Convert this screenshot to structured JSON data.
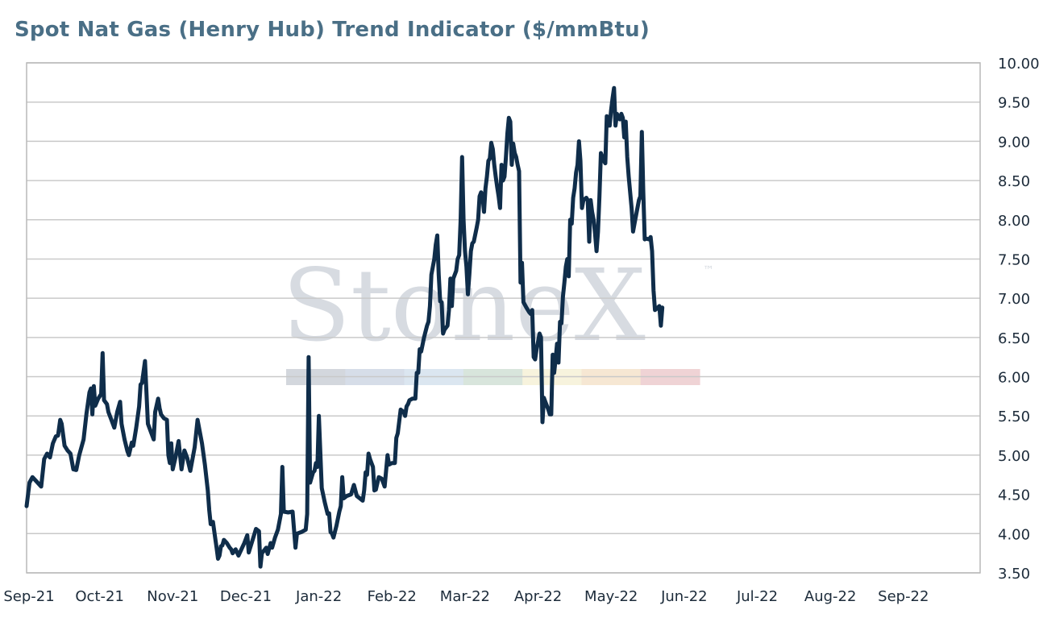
{
  "chart_data": {
    "type": "line",
    "title": "Spot Nat Gas (Henry Hub) Trend Indicator ($/mmBtu)",
    "xlabel": "",
    "ylabel": "",
    "ylim": [
      3.5,
      10.0
    ],
    "yticks": [
      "3.50",
      "4.00",
      "4.50",
      "5.00",
      "5.50",
      "6.00",
      "6.50",
      "7.00",
      "7.50",
      "8.00",
      "8.50",
      "9.00",
      "9.50",
      "10.00"
    ],
    "y_axis_side": "right",
    "grid": true,
    "legend": "none",
    "x_tick_labels": [
      "Sep-21",
      "Oct-21",
      "Nov-21",
      "Dec-21",
      "Jan-22",
      "Feb-22",
      "Mar-22",
      "Apr-22",
      "May-22",
      "Jun-22",
      "Jul-22",
      "Aug-22",
      "Sep-22"
    ],
    "x_tick_pos": [
      0,
      1,
      2,
      3,
      4,
      5,
      6,
      7,
      8,
      9,
      10,
      11,
      12
    ],
    "xlim": [
      0,
      13.05
    ],
    "line_color": "#0f2d4a",
    "watermark": {
      "text": "StoneX",
      "tm": "™",
      "colors": [
        "#d3d7dd",
        "#d6dde8",
        "#dbe6f0",
        "#d8e5dc",
        "#f7f3dd",
        "#f6e7d3",
        "#efd3d5"
      ]
    },
    "points": [
      [
        0.0,
        4.35
      ],
      [
        0.04,
        4.65
      ],
      [
        0.08,
        4.72
      ],
      [
        0.14,
        4.66
      ],
      [
        0.2,
        4.6
      ],
      [
        0.24,
        4.95
      ],
      [
        0.28,
        5.02
      ],
      [
        0.32,
        4.97
      ],
      [
        0.36,
        5.15
      ],
      [
        0.4,
        5.24
      ],
      [
        0.43,
        5.25
      ],
      [
        0.46,
        5.45
      ],
      [
        0.48,
        5.4
      ],
      [
        0.52,
        5.12
      ],
      [
        0.56,
        5.06
      ],
      [
        0.6,
        5.02
      ],
      [
        0.64,
        4.82
      ],
      [
        0.68,
        4.81
      ],
      [
        0.72,
        5.0
      ],
      [
        0.78,
        5.2
      ],
      [
        0.82,
        5.53
      ],
      [
        0.86,
        5.8
      ],
      [
        0.88,
        5.85
      ],
      [
        0.9,
        5.52
      ],
      [
        0.92,
        5.88
      ],
      [
        0.94,
        5.63
      ],
      [
        0.98,
        5.72
      ],
      [
        1.02,
        5.78
      ],
      [
        1.04,
        6.3
      ],
      [
        1.06,
        5.7
      ],
      [
        1.1,
        5.65
      ],
      [
        1.12,
        5.55
      ],
      [
        1.16,
        5.45
      ],
      [
        1.2,
        5.35
      ],
      [
        1.24,
        5.55
      ],
      [
        1.28,
        5.68
      ],
      [
        1.3,
        5.4
      ],
      [
        1.34,
        5.2
      ],
      [
        1.38,
        5.05
      ],
      [
        1.4,
        5.0
      ],
      [
        1.44,
        5.16
      ],
      [
        1.46,
        5.12
      ],
      [
        1.5,
        5.35
      ],
      [
        1.54,
        5.62
      ],
      [
        1.56,
        5.9
      ],
      [
        1.58,
        5.92
      ],
      [
        1.62,
        6.2
      ],
      [
        1.64,
        5.8
      ],
      [
        1.66,
        5.4
      ],
      [
        1.7,
        5.3
      ],
      [
        1.74,
        5.2
      ],
      [
        1.76,
        5.55
      ],
      [
        1.8,
        5.72
      ],
      [
        1.82,
        5.6
      ],
      [
        1.84,
        5.52
      ],
      [
        1.88,
        5.47
      ],
      [
        1.92,
        5.45
      ],
      [
        1.94,
        5.0
      ],
      [
        1.96,
        4.9
      ],
      [
        1.98,
        5.15
      ],
      [
        2.0,
        4.82
      ],
      [
        2.04,
        4.98
      ],
      [
        2.08,
        5.18
      ],
      [
        2.12,
        4.82
      ],
      [
        2.16,
        5.06
      ],
      [
        2.2,
        4.96
      ],
      [
        2.24,
        4.8
      ],
      [
        2.28,
        5.0
      ],
      [
        2.3,
        5.1
      ],
      [
        2.34,
        5.45
      ],
      [
        2.4,
        5.15
      ],
      [
        2.44,
        4.88
      ],
      [
        2.48,
        4.55
      ],
      [
        2.5,
        4.3
      ],
      [
        2.52,
        4.12
      ],
      [
        2.55,
        4.15
      ],
      [
        2.58,
        3.95
      ],
      [
        2.6,
        3.82
      ],
      [
        2.62,
        3.68
      ],
      [
        2.64,
        3.72
      ],
      [
        2.66,
        3.84
      ],
      [
        2.68,
        3.85
      ],
      [
        2.7,
        3.92
      ],
      [
        2.74,
        3.88
      ],
      [
        2.78,
        3.82
      ],
      [
        2.8,
        3.8
      ],
      [
        2.82,
        3.75
      ],
      [
        2.86,
        3.8
      ],
      [
        2.9,
        3.72
      ],
      [
        2.94,
        3.8
      ],
      [
        2.98,
        3.88
      ],
      [
        3.02,
        3.98
      ],
      [
        3.04,
        3.76
      ],
      [
        3.08,
        3.88
      ],
      [
        3.12,
        4.0
      ],
      [
        3.14,
        4.06
      ],
      [
        3.18,
        4.03
      ],
      [
        3.2,
        3.58
      ],
      [
        3.22,
        3.75
      ],
      [
        3.28,
        3.82
      ],
      [
        3.3,
        3.74
      ],
      [
        3.34,
        3.88
      ],
      [
        3.36,
        3.82
      ],
      [
        3.4,
        3.95
      ],
      [
        3.44,
        4.05
      ],
      [
        3.48,
        4.25
      ],
      [
        3.5,
        4.85
      ],
      [
        3.52,
        4.28
      ],
      [
        3.58,
        4.27
      ],
      [
        3.64,
        4.28
      ],
      [
        3.68,
        3.82
      ],
      [
        3.7,
        4.0
      ],
      [
        3.76,
        4.02
      ],
      [
        3.82,
        4.05
      ],
      [
        3.84,
        4.25
      ],
      [
        3.86,
        6.25
      ],
      [
        3.88,
        4.65
      ],
      [
        3.92,
        4.78
      ],
      [
        3.94,
        4.8
      ],
      [
        3.96,
        4.9
      ],
      [
        3.98,
        4.85
      ],
      [
        4.0,
        5.5
      ],
      [
        4.04,
        4.58
      ],
      [
        4.08,
        4.4
      ],
      [
        4.12,
        4.25
      ],
      [
        4.14,
        4.26
      ],
      [
        4.16,
        4.02
      ],
      [
        4.18,
        4.0
      ],
      [
        4.2,
        3.95
      ],
      [
        4.24,
        4.1
      ],
      [
        4.28,
        4.28
      ],
      [
        4.3,
        4.35
      ],
      [
        4.32,
        4.72
      ],
      [
        4.34,
        4.45
      ],
      [
        4.38,
        4.48
      ],
      [
        4.44,
        4.5
      ],
      [
        4.48,
        4.62
      ],
      [
        4.52,
        4.48
      ],
      [
        4.56,
        4.45
      ],
      [
        4.6,
        4.42
      ],
      [
        4.62,
        4.55
      ],
      [
        4.64,
        4.78
      ],
      [
        4.66,
        4.75
      ],
      [
        4.68,
        5.02
      ],
      [
        4.7,
        4.95
      ],
      [
        4.72,
        4.9
      ],
      [
        4.74,
        4.85
      ],
      [
        4.76,
        4.55
      ],
      [
        4.78,
        4.56
      ],
      [
        4.82,
        4.72
      ],
      [
        4.86,
        4.7
      ],
      [
        4.9,
        4.6
      ],
      [
        4.94,
        5.0
      ],
      [
        4.96,
        4.88
      ],
      [
        5.0,
        4.9
      ],
      [
        5.04,
        4.9
      ],
      [
        5.06,
        5.22
      ],
      [
        5.08,
        5.28
      ],
      [
        5.12,
        5.58
      ],
      [
        5.16,
        5.55
      ],
      [
        5.18,
        5.5
      ],
      [
        5.2,
        5.62
      ],
      [
        5.22,
        5.65
      ],
      [
        5.24,
        5.7
      ],
      [
        5.28,
        5.72
      ],
      [
        5.32,
        5.72
      ],
      [
        5.34,
        6.05
      ],
      [
        5.36,
        6.05
      ],
      [
        5.38,
        6.35
      ],
      [
        5.4,
        6.32
      ],
      [
        5.44,
        6.5
      ],
      [
        5.48,
        6.65
      ],
      [
        5.5,
        6.7
      ],
      [
        5.52,
        6.9
      ],
      [
        5.54,
        7.3
      ],
      [
        5.56,
        7.4
      ],
      [
        5.58,
        7.5
      ],
      [
        5.6,
        7.68
      ],
      [
        5.62,
        7.8
      ],
      [
        5.64,
        7.3
      ],
      [
        5.66,
        6.96
      ],
      [
        5.68,
        6.95
      ],
      [
        5.7,
        6.55
      ],
      [
        5.72,
        6.6
      ],
      [
        5.76,
        6.65
      ],
      [
        5.78,
        6.85
      ],
      [
        5.8,
        7.25
      ],
      [
        5.82,
        6.9
      ],
      [
        5.84,
        7.25
      ],
      [
        5.88,
        7.35
      ],
      [
        5.9,
        7.5
      ],
      [
        5.92,
        7.55
      ],
      [
        5.94,
        8.0
      ],
      [
        5.96,
        8.8
      ],
      [
        5.98,
        8.0
      ],
      [
        6.0,
        7.6
      ],
      [
        6.02,
        7.4
      ],
      [
        6.04,
        7.05
      ],
      [
        6.06,
        7.3
      ],
      [
        6.08,
        7.6
      ],
      [
        6.1,
        7.7
      ],
      [
        6.12,
        7.72
      ],
      [
        6.16,
        7.9
      ],
      [
        6.18,
        8.0
      ],
      [
        6.2,
        8.3
      ],
      [
        6.22,
        8.35
      ],
      [
        6.24,
        8.3
      ],
      [
        6.26,
        8.1
      ],
      [
        6.28,
        8.4
      ],
      [
        6.3,
        8.55
      ],
      [
        6.32,
        8.75
      ],
      [
        6.34,
        8.78
      ],
      [
        6.36,
        8.98
      ],
      [
        6.38,
        8.9
      ],
      [
        6.4,
        8.7
      ],
      [
        6.42,
        8.55
      ],
      [
        6.44,
        8.42
      ],
      [
        6.46,
        8.3
      ],
      [
        6.48,
        8.15
      ],
      [
        6.5,
        8.7
      ],
      [
        6.52,
        8.5
      ],
      [
        6.54,
        8.55
      ],
      [
        6.56,
        8.8
      ],
      [
        6.58,
        9.1
      ],
      [
        6.6,
        9.3
      ],
      [
        6.62,
        9.25
      ],
      [
        6.64,
        8.7
      ],
      [
        6.66,
        8.97
      ],
      [
        6.68,
        8.85
      ],
      [
        6.7,
        8.8
      ],
      [
        6.72,
        8.7
      ],
      [
        6.74,
        8.62
      ],
      [
        6.76,
        7.2
      ],
      [
        6.78,
        7.45
      ],
      [
        6.8,
        6.95
      ],
      [
        6.84,
        6.88
      ],
      [
        6.88,
        6.82
      ],
      [
        6.9,
        6.8
      ],
      [
        6.92,
        6.85
      ],
      [
        6.94,
        6.25
      ],
      [
        6.96,
        6.22
      ],
      [
        6.98,
        6.35
      ],
      [
        7.0,
        6.45
      ],
      [
        7.02,
        6.55
      ],
      [
        7.04,
        6.5
      ],
      [
        7.06,
        5.42
      ],
      [
        7.08,
        5.73
      ],
      [
        7.1,
        5.68
      ],
      [
        7.14,
        5.58
      ],
      [
        7.16,
        5.52
      ],
      [
        7.18,
        5.52
      ],
      [
        7.2,
        6.28
      ],
      [
        7.22,
        6.05
      ],
      [
        7.24,
        6.22
      ],
      [
        7.26,
        6.42
      ],
      [
        7.28,
        6.18
      ],
      [
        7.3,
        6.7
      ],
      [
        7.32,
        6.68
      ],
      [
        7.34,
        7.02
      ],
      [
        7.36,
        7.2
      ],
      [
        7.38,
        7.4
      ],
      [
        7.4,
        7.5
      ],
      [
        7.42,
        7.28
      ],
      [
        7.44,
        8.0
      ],
      [
        7.46,
        7.95
      ],
      [
        7.48,
        8.28
      ],
      [
        7.5,
        8.4
      ],
      [
        7.52,
        8.6
      ],
      [
        7.54,
        8.7
      ],
      [
        7.56,
        9.0
      ],
      [
        7.58,
        8.75
      ],
      [
        7.6,
        8.15
      ],
      [
        7.62,
        8.25
      ],
      [
        7.66,
        8.28
      ],
      [
        7.68,
        8.25
      ],
      [
        7.7,
        7.72
      ],
      [
        7.72,
        8.25
      ],
      [
        7.74,
        8.1
      ],
      [
        7.76,
        8.0
      ],
      [
        7.78,
        7.82
      ],
      [
        7.8,
        7.6
      ],
      [
        7.82,
        7.85
      ],
      [
        7.84,
        8.3
      ],
      [
        7.86,
        8.85
      ],
      [
        7.88,
        8.8
      ],
      [
        7.9,
        8.75
      ],
      [
        7.92,
        8.72
      ],
      [
        7.94,
        9.32
      ],
      [
        7.96,
        9.2
      ],
      [
        7.98,
        9.2
      ],
      [
        8.0,
        9.4
      ],
      [
        8.02,
        9.55
      ],
      [
        8.04,
        9.68
      ],
      [
        8.06,
        9.2
      ],
      [
        8.08,
        9.35
      ],
      [
        8.1,
        9.3
      ],
      [
        8.12,
        9.28
      ],
      [
        8.14,
        9.35
      ],
      [
        8.16,
        9.3
      ],
      [
        8.18,
        9.05
      ],
      [
        8.2,
        9.25
      ],
      [
        8.22,
        8.8
      ],
      [
        8.24,
        8.55
      ],
      [
        8.26,
        8.35
      ],
      [
        8.28,
        8.15
      ],
      [
        8.3,
        7.85
      ],
      [
        8.32,
        7.95
      ],
      [
        8.34,
        8.05
      ],
      [
        8.38,
        8.25
      ],
      [
        8.4,
        8.3
      ],
      [
        8.42,
        9.12
      ],
      [
        8.44,
        8.35
      ],
      [
        8.46,
        7.75
      ],
      [
        8.48,
        7.76
      ],
      [
        8.52,
        7.75
      ],
      [
        8.54,
        7.78
      ],
      [
        8.56,
        7.6
      ],
      [
        8.58,
        7.1
      ],
      [
        8.6,
        6.85
      ],
      [
        8.64,
        6.88
      ],
      [
        8.66,
        6.9
      ],
      [
        8.68,
        6.65
      ],
      [
        8.7,
        6.88
      ]
    ]
  }
}
